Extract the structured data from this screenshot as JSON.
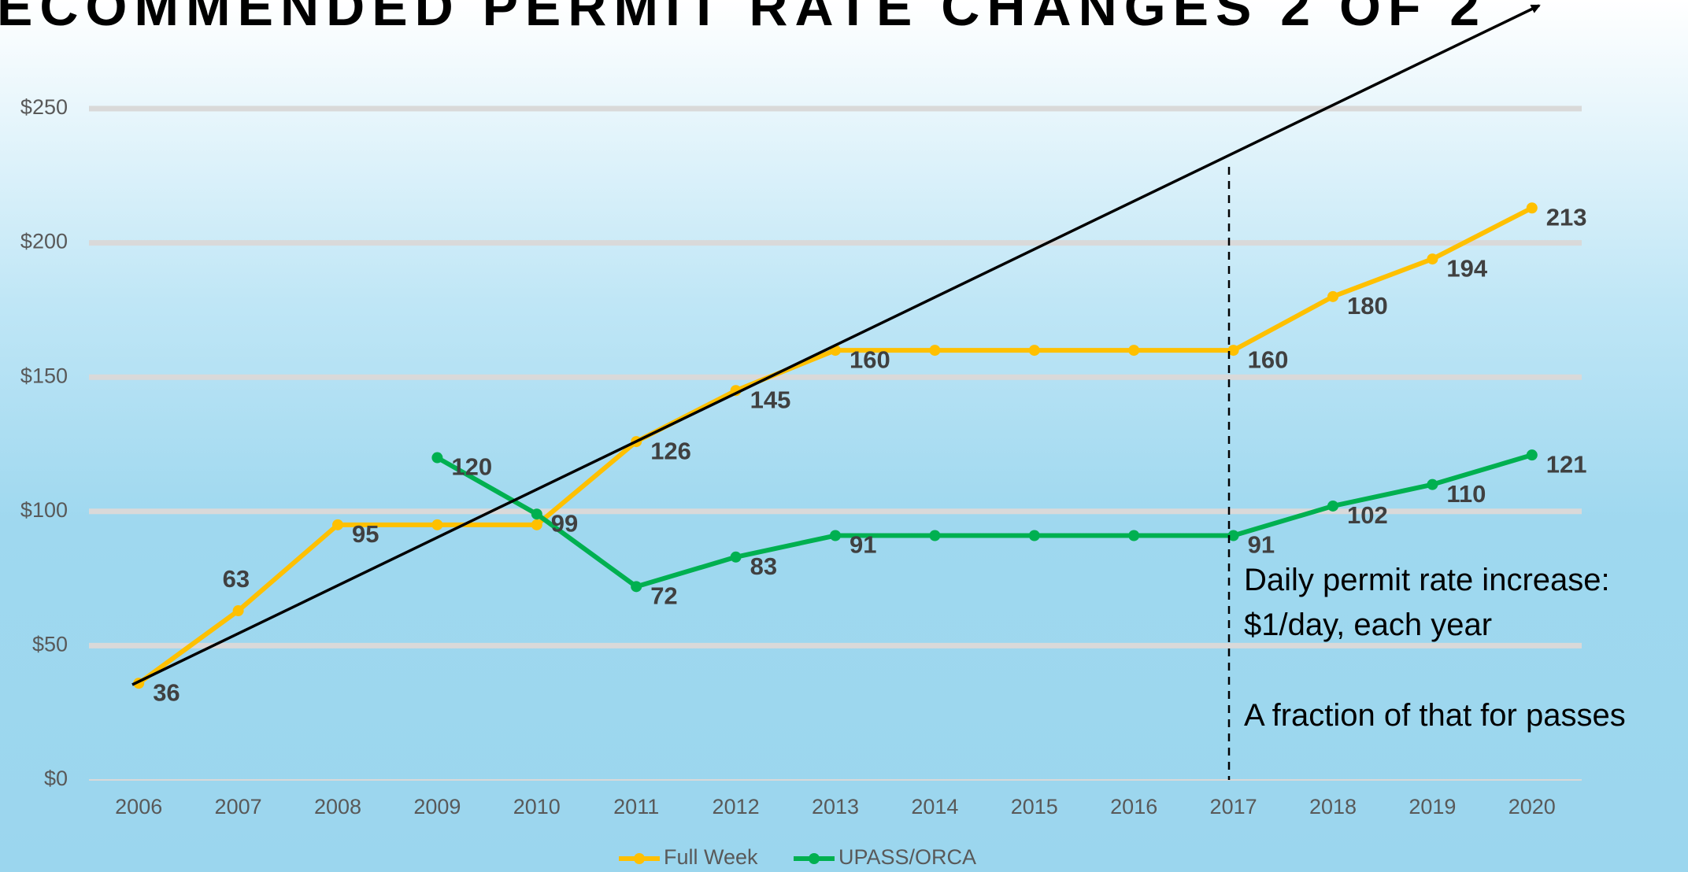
{
  "chart_data": {
    "type": "line",
    "title": "ECOMMENDED PERMIT RATE CHANGES 2 OF 2",
    "categories": [
      "2006",
      "2007",
      "2008",
      "2009",
      "2010",
      "2011",
      "2012",
      "2013",
      "2014",
      "2015",
      "2016",
      "2017",
      "2018",
      "2019",
      "2020"
    ],
    "series": [
      {
        "name": "Full Week",
        "color": "#ffc000",
        "values": [
          36,
          63,
          95,
          95,
          95,
          126,
          145,
          160,
          160,
          160,
          160,
          160,
          180,
          194,
          213
        ],
        "value_labels": [
          "36",
          "63",
          "95",
          null,
          null,
          "126",
          "145",
          "160",
          null,
          null,
          null,
          "160",
          "180",
          "194",
          "213"
        ]
      },
      {
        "name": "UPASS/ORCA",
        "color": "#00b050",
        "values": [
          null,
          null,
          null,
          120,
          99,
          72,
          83,
          91,
          91,
          91,
          91,
          91,
          102,
          110,
          121
        ],
        "value_labels": [
          null,
          null,
          null,
          "120",
          "99",
          "72",
          "83",
          "91",
          null,
          null,
          null,
          "91",
          "102",
          "110",
          "121"
        ]
      }
    ],
    "ylim": [
      0,
      250
    ],
    "yticks": [
      {
        "value": 0,
        "label": "$0"
      },
      {
        "value": 50,
        "label": "$50"
      },
      {
        "value": 100,
        "label": "$100"
      },
      {
        "value": 150,
        "label": "$150"
      },
      {
        "value": 200,
        "label": "$200"
      },
      {
        "value": 250,
        "label": "$250"
      }
    ],
    "grid": true,
    "legend": "bottom",
    "annotations": [
      "Daily permit rate increase:",
      "$1/day, each year",
      "A fraction of that for passes"
    ]
  }
}
